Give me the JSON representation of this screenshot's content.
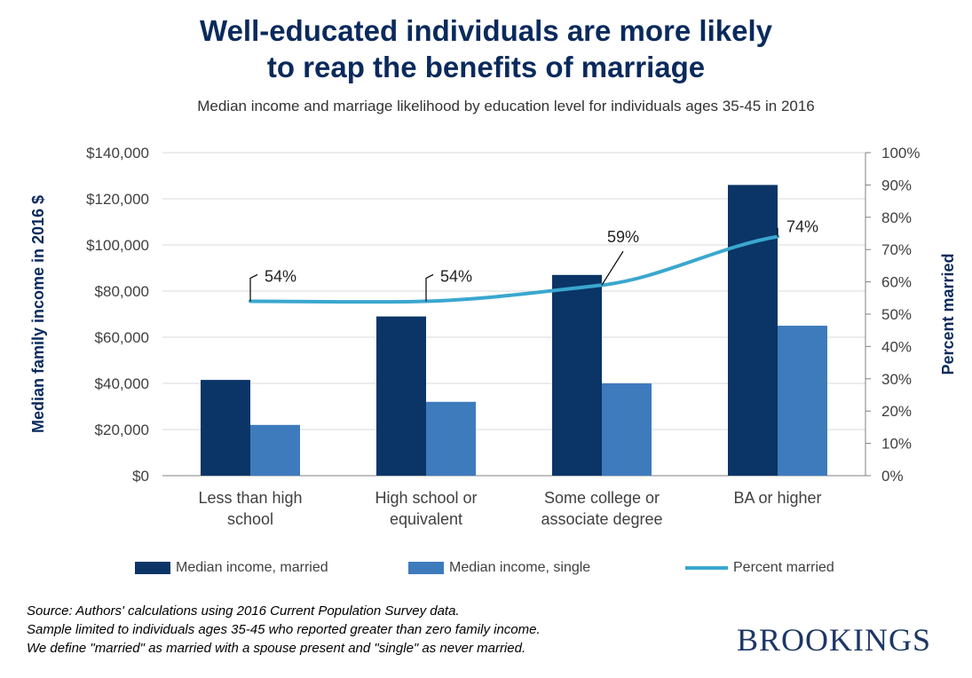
{
  "title_lines": [
    "Well-educated individuals are more likely",
    "to reap the benefits of marriage"
  ],
  "subtitle": "Median income and marriage likelihood by education level for individuals ages 35-45 in 2016",
  "chart_data": {
    "type": "bar",
    "title": "Well-educated individuals are more likely to reap the benefits of marriage",
    "subtitle": "Median income and marriage likelihood by education level for individuals ages 35-45 in 2016",
    "categories": [
      [
        "Less than high",
        "school"
      ],
      [
        "High school or",
        "equivalent"
      ],
      [
        "Some college or",
        "associate degree"
      ],
      [
        "BA or higher"
      ]
    ],
    "series": [
      {
        "name": "Median income, married",
        "type": "bar",
        "axis": "left",
        "color": "#0a3566",
        "values": [
          41500,
          69000,
          87000,
          126000
        ]
      },
      {
        "name": "Median income, single",
        "type": "bar",
        "axis": "left",
        "color": "#3e7bbd",
        "values": [
          22000,
          32000,
          40000,
          65000
        ]
      },
      {
        "name": "Percent married",
        "type": "line",
        "axis": "right",
        "color": "#3aa7cf",
        "values": [
          54,
          54,
          59,
          74
        ]
      }
    ],
    "data_labels": [
      "54%",
      "54%",
      "59%",
      "74%"
    ],
    "ylabel": "Median family income in 2016 $",
    "y2label": "Percent married",
    "ylim": [
      0,
      140000
    ],
    "y2lim": [
      0,
      100
    ],
    "yticks": [
      "$0",
      "$20,000",
      "$40,000",
      "$60,000",
      "$80,000",
      "$100,000",
      "$120,000",
      "$140,000"
    ],
    "y2ticks": [
      "0%",
      "10%",
      "20%",
      "30%",
      "40%",
      "50%",
      "60%",
      "70%",
      "80%",
      "90%",
      "100%"
    ],
    "legend_position": "bottom",
    "grid": true
  },
  "source_lines": [
    "Source: Authors' calculations using 2016 Current Population Survey data.",
    "Sample limited to individuals ages 35-45 who reported greater than zero family income.",
    "We define \"married\" as married with a spouse present and \"single\" as never married."
  ],
  "logo_text": "BROOKINGS"
}
